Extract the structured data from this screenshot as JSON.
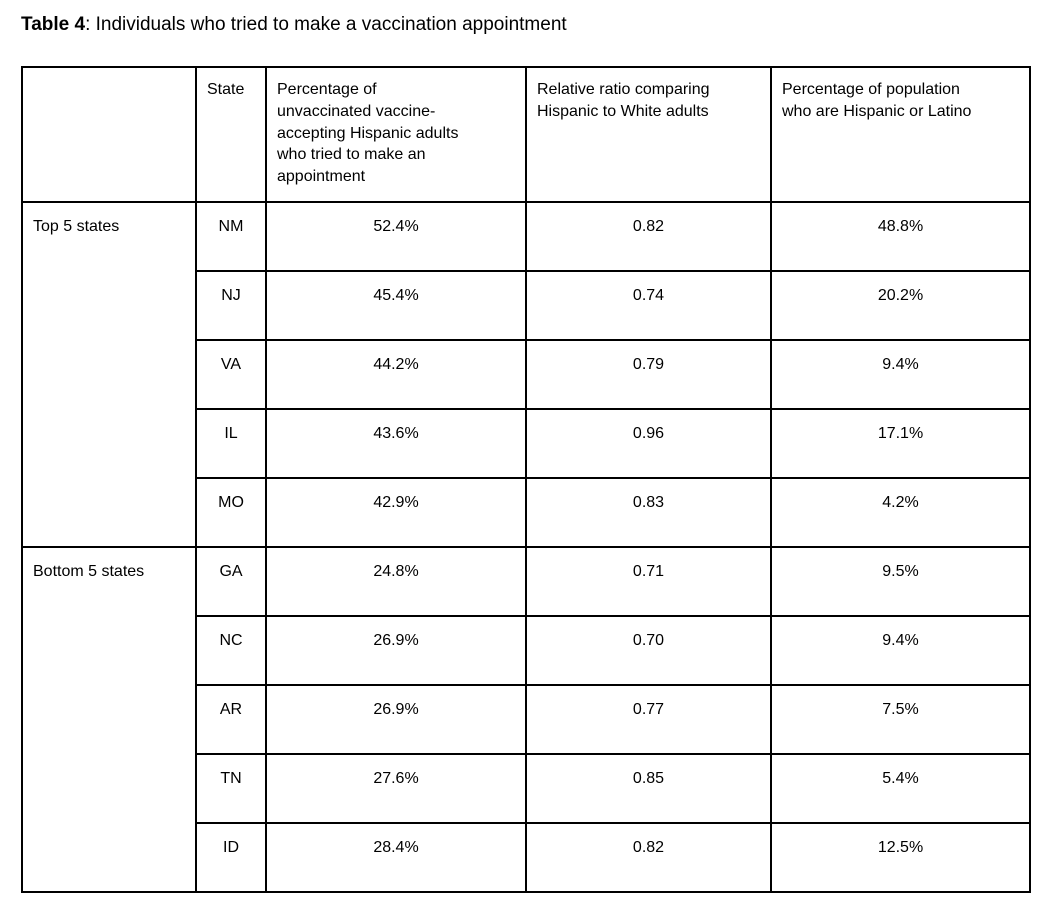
{
  "page": {
    "title_bold": "Table 4",
    "title_rest": ": Individuals who tried to make a vaccination appointment"
  },
  "table": {
    "columns": [
      "",
      "State",
      "Percentage of\nunvaccinated vaccine-\naccepting Hispanic adults\nwho tried to make an\nappointment",
      "Relative ratio comparing\nHispanic to White adults",
      "Percentage of population\nwho are Hispanic or Latino"
    ],
    "groups": [
      {
        "label": "Top 5 states",
        "rows": [
          {
            "state": "NM",
            "pct_tried": "52.4%",
            "ratio": "0.82",
            "pct_hispanic": "48.8%"
          },
          {
            "state": "NJ",
            "pct_tried": "45.4%",
            "ratio": "0.74",
            "pct_hispanic": "20.2%"
          },
          {
            "state": "VA",
            "pct_tried": "44.2%",
            "ratio": "0.79",
            "pct_hispanic": "9.4%"
          },
          {
            "state": "IL",
            "pct_tried": "43.6%",
            "ratio": "0.96",
            "pct_hispanic": "17.1%"
          },
          {
            "state": "MO",
            "pct_tried": "42.9%",
            "ratio": "0.83",
            "pct_hispanic": "4.2%"
          }
        ]
      },
      {
        "label": "Bottom 5 states",
        "rows": [
          {
            "state": "GA",
            "pct_tried": "24.8%",
            "ratio": "0.71",
            "pct_hispanic": "9.5%"
          },
          {
            "state": "NC",
            "pct_tried": "26.9%",
            "ratio": "0.70",
            "pct_hispanic": "9.4%"
          },
          {
            "state": "AR",
            "pct_tried": "26.9%",
            "ratio": "0.77",
            "pct_hispanic": "7.5%"
          },
          {
            "state": "TN",
            "pct_tried": "27.6%",
            "ratio": "0.85",
            "pct_hispanic": "5.4%"
          },
          {
            "state": "ID",
            "pct_tried": "28.4%",
            "ratio": "0.82",
            "pct_hispanic": "12.5%"
          }
        ]
      }
    ]
  },
  "colors": {
    "text": "#000000",
    "border": "#000000",
    "background": "#ffffff"
  }
}
